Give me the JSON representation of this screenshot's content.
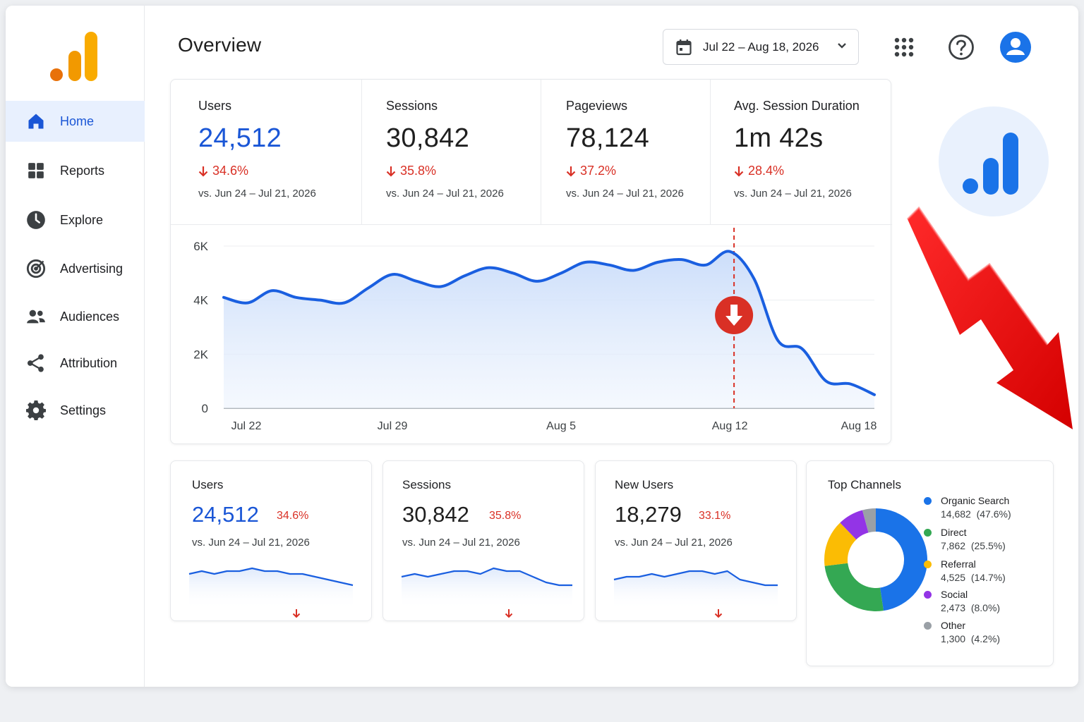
{
  "colors": {
    "brand_orange": "#f9ab00",
    "brand_deep_orange": "#e37400",
    "accent_blue": "#1a56d6",
    "line_blue": "#1a5fe0",
    "down_red": "#d93025"
  },
  "header": {
    "title": "Overview",
    "date_range": "Jul 22 – Aug 18, 2026",
    "icons": [
      "calendar-icon",
      "chevron-down-icon",
      "apps-grid-icon",
      "help-icon",
      "account-icon"
    ]
  },
  "sidebar": {
    "items": [
      {
        "label": "Home",
        "icon": "home-icon",
        "active": true
      },
      {
        "label": "Reports",
        "icon": "reports-grid-icon"
      },
      {
        "label": "Explore",
        "icon": "explore-icon"
      },
      {
        "label": "Advertising",
        "icon": "advertising-target-icon"
      },
      {
        "label": "Audiences",
        "icon": "audiences-icon"
      },
      {
        "label": "Attribution",
        "icon": "attribution-share-icon"
      },
      {
        "label": "Settings",
        "icon": "settings-gear-icon"
      }
    ]
  },
  "metrics": [
    {
      "label": "Users",
      "value": "24,512",
      "change": "34.6%",
      "compare": "vs. Jun 24 – Jul 21, 2026",
      "highlight": true
    },
    {
      "label": "Sessions",
      "value": "30,842",
      "change": "35.8%",
      "compare": "vs. Jun 24 – Jul 21, 2026"
    },
    {
      "label": "Pageviews",
      "value": "78,124",
      "change": "37.2%",
      "compare": "vs. Jun 24 – Jul 21, 2026"
    },
    {
      "label": "Avg. Session Duration",
      "value": "1m 42s",
      "change": "28.4%",
      "compare": "vs. Jun 24 – Jul 21, 2026"
    }
  ],
  "chart_data": {
    "type": "area",
    "title": "",
    "xlabel": "",
    "ylabel": "",
    "x_ticks": [
      "Jul 22",
      "Jul 29",
      "Aug 5",
      "Aug 12",
      "Aug 18"
    ],
    "y_ticks": [
      "6K",
      "4K",
      "2K",
      "0"
    ],
    "ylim": [
      0,
      6000
    ],
    "grid": true,
    "x": [
      "Jul 22",
      "Jul 23",
      "Jul 24",
      "Jul 25",
      "Jul 26",
      "Jul 27",
      "Jul 28",
      "Jul 29",
      "Jul 30",
      "Jul 31",
      "Aug 1",
      "Aug 2",
      "Aug 3",
      "Aug 4",
      "Aug 5",
      "Aug 6",
      "Aug 7",
      "Aug 8",
      "Aug 9",
      "Aug 10",
      "Aug 11",
      "Aug 12",
      "Aug 13",
      "Aug 14",
      "Aug 15",
      "Aug 16",
      "Aug 17",
      "Aug 18"
    ],
    "series": [
      {
        "values": [
          4100,
          3900,
          4350,
          4100,
          4000,
          3900,
          4450,
          4950,
          4700,
          4500,
          4900,
          5200,
          5000,
          4700,
          5000,
          5400,
          5300,
          5100,
          5400,
          5500,
          5300,
          5800,
          4800,
          2500,
          2200,
          1000,
          900,
          500
        ]
      }
    ],
    "annotation": {
      "type": "drop-marker",
      "x": "Aug 12"
    }
  },
  "mini_cards": [
    {
      "label": "Users",
      "value": "24,512",
      "change": "34.6%",
      "compare": "vs. Jun 24 – Jul 21, 2026",
      "highlight": true,
      "spark": [
        5,
        6,
        5,
        6,
        6,
        7,
        6,
        6,
        5,
        5,
        4,
        3,
        2,
        1
      ]
    },
    {
      "label": "Sessions",
      "value": "30,842",
      "change": "35.8%",
      "compare": "vs. Jun 24 – Jul 21, 2026",
      "spark": [
        4,
        5,
        4,
        5,
        6,
        6,
        5,
        7,
        6,
        6,
        4,
        2,
        1,
        1
      ]
    },
    {
      "label": "New Users",
      "value": "18,279",
      "change": "33.1%",
      "compare": "vs. Jun 24 – Jul 21, 2026",
      "spark": [
        3,
        4,
        4,
        5,
        4,
        5,
        6,
        6,
        5,
        6,
        3,
        2,
        1,
        1
      ]
    }
  ],
  "channels": {
    "title": "Top Channels",
    "items": [
      {
        "name": "Organic Search",
        "value": "14,682",
        "pct": "(47.6%)",
        "share": 47.6,
        "color": "#1a73e8"
      },
      {
        "name": "Direct",
        "value": "7,862",
        "pct": "(25.5%)",
        "share": 25.5,
        "color": "#34a853"
      },
      {
        "name": "Referral",
        "value": "4,525",
        "pct": "(14.7%)",
        "share": 14.7,
        "color": "#fbbc04"
      },
      {
        "name": "Social",
        "value": "2,473",
        "pct": "(8.0%)",
        "share": 8.0,
        "color": "#9334e6"
      },
      {
        "name": "Other",
        "value": "1,300",
        "pct": "(4.2%)",
        "share": 4.2,
        "color": "#9aa0a6"
      }
    ]
  }
}
